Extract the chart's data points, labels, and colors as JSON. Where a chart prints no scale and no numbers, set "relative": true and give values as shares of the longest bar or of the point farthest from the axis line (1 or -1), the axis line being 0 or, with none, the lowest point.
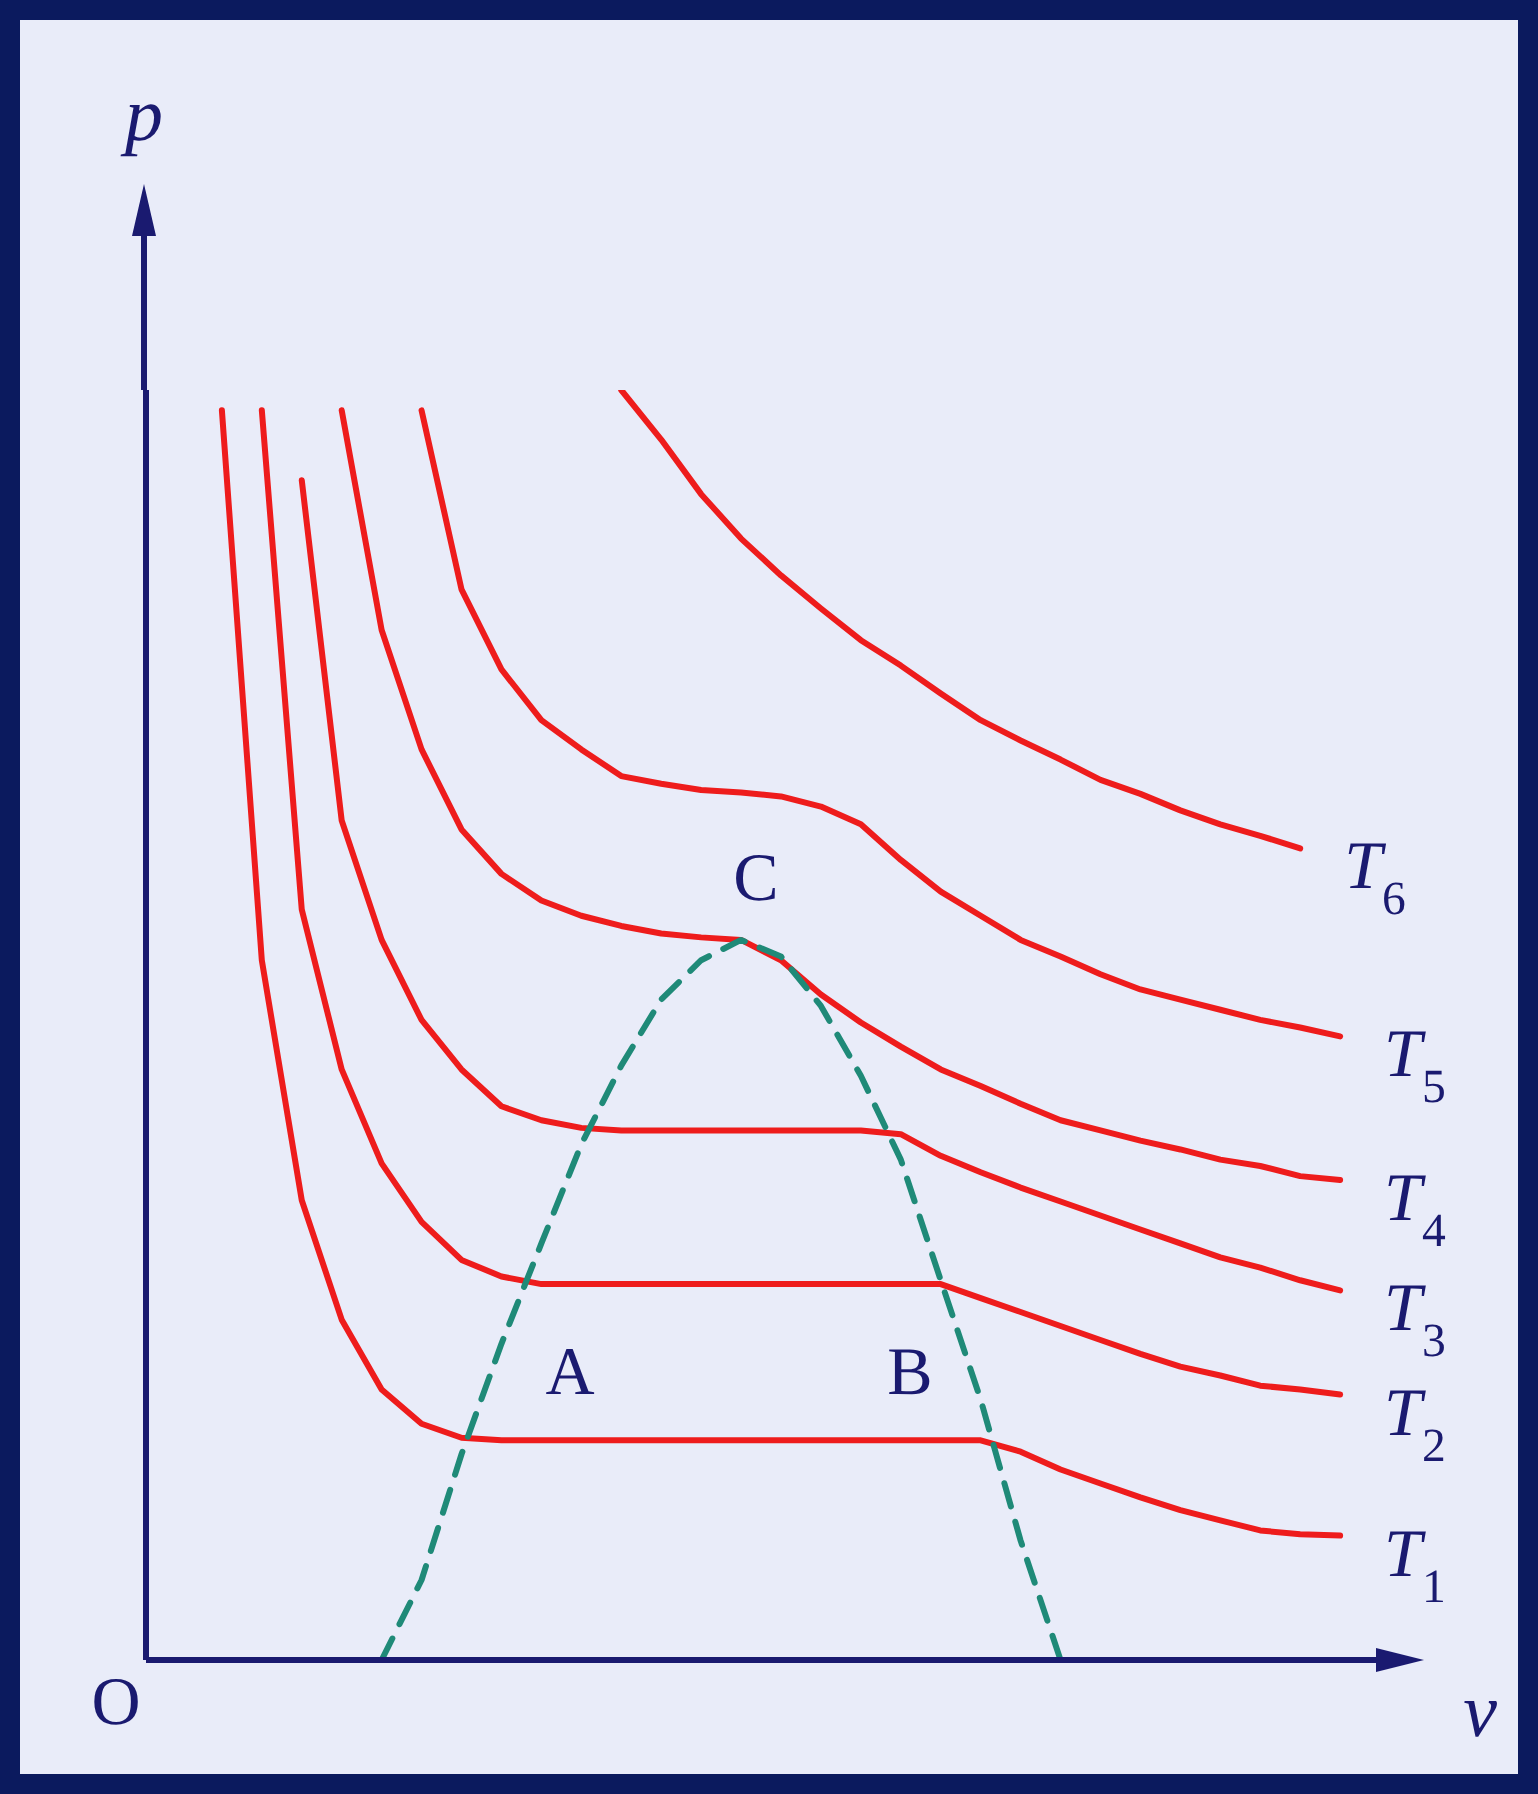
{
  "chart_data": {
    "type": "line",
    "relative": true,
    "xlabel": "v",
    "ylabel": "p",
    "marker": "none",
    "categories": [
      null,
      null,
      null,
      null,
      null,
      null,
      null,
      null,
      null,
      null,
      null,
      null,
      null,
      null,
      null,
      null,
      null,
      null,
      null,
      null,
      null,
      null,
      null,
      null,
      null,
      null,
      null,
      null,
      null
    ],
    "series": [
      {
        "name": "T$_{1}$",
        "color": "#ee1c1c",
        "values": [
          0.984,
          0.551,
          0.362,
          0.268,
          0.213,
          0.186,
          0.175,
          0.173,
          0.173,
          0.173,
          0.173,
          0.173,
          0.173,
          0.173,
          0.173,
          0.173,
          0.173,
          0.173,
          0.173,
          0.173,
          0.164,
          0.15,
          0.139,
          0.128,
          0.118,
          0.11,
          0.102,
          0.099,
          0.098
        ]
      },
      {
        "name": "T$_{2}$",
        "color": "#ee1c1c",
        "values": [
          null,
          0.984,
          0.591,
          0.465,
          0.391,
          0.345,
          0.315,
          0.302,
          0.296,
          0.296,
          0.296,
          0.296,
          0.296,
          0.296,
          0.296,
          0.296,
          0.296,
          0.296,
          0.296,
          0.285,
          0.274,
          0.263,
          0.252,
          0.241,
          0.231,
          0.224,
          0.216,
          0.213,
          0.209
        ]
      },
      {
        "name": "T$_{3}$",
        "color": "#ee1c1c",
        "values": [
          null,
          null,
          0.929,
          0.661,
          0.567,
          0.504,
          0.465,
          0.436,
          0.425,
          0.419,
          0.417,
          0.417,
          0.417,
          0.417,
          0.417,
          0.417,
          0.417,
          0.414,
          0.397,
          0.384,
          0.372,
          0.361,
          0.35,
          0.339,
          0.328,
          0.317,
          0.309,
          0.299,
          0.291
        ]
      },
      {
        "name": "T$_{4}$",
        "color": "#ee1c1c",
        "values": [
          null,
          null,
          null,
          0.984,
          0.811,
          0.717,
          0.654,
          0.619,
          0.598,
          0.586,
          0.578,
          0.572,
          0.569,
          0.567,
          0.551,
          0.524,
          0.502,
          0.483,
          0.465,
          0.452,
          0.438,
          0.425,
          0.417,
          0.409,
          0.402,
          0.394,
          0.389,
          0.381,
          0.378
        ]
      },
      {
        "name": "T$_{5}$",
        "color": "#ee1c1c",
        "values": [
          null,
          null,
          null,
          null,
          null,
          0.984,
          0.843,
          0.78,
          0.74,
          0.717,
          0.696,
          0.69,
          0.685,
          0.683,
          0.68,
          0.672,
          0.658,
          0.63,
          0.605,
          0.586,
          0.567,
          0.554,
          0.54,
          0.528,
          0.52,
          0.512,
          0.504,
          0.498,
          0.491
        ]
      },
      {
        "name": "T$_{6}$",
        "color": "#ee1c1c",
        "values": [
          null,
          null,
          null,
          null,
          null,
          null,
          null,
          null,
          null,
          null,
          1,
          0.961,
          0.918,
          0.883,
          0.854,
          0.828,
          0.803,
          0.783,
          0.761,
          0.74,
          0.724,
          0.709,
          0.693,
          0.682,
          0.669,
          0.658,
          0.649,
          0.639,
          null
        ]
      },
      {
        "color": "#1f8a78",
        "line_style": "dashed",
        "values": [
          null,
          null,
          null,
          null,
          0,
          0.063,
          0.162,
          0.249,
          0.328,
          0.406,
          0.468,
          0.52,
          0.551,
          0.567,
          0.554,
          0.515,
          0.46,
          0.394,
          0.299,
          0.205,
          0.094,
          0,
          null,
          null,
          null,
          null,
          null,
          null,
          null
        ]
      }
    ],
    "annotations": [
      "O",
      "A",
      "B",
      "C"
    ]
  }
}
